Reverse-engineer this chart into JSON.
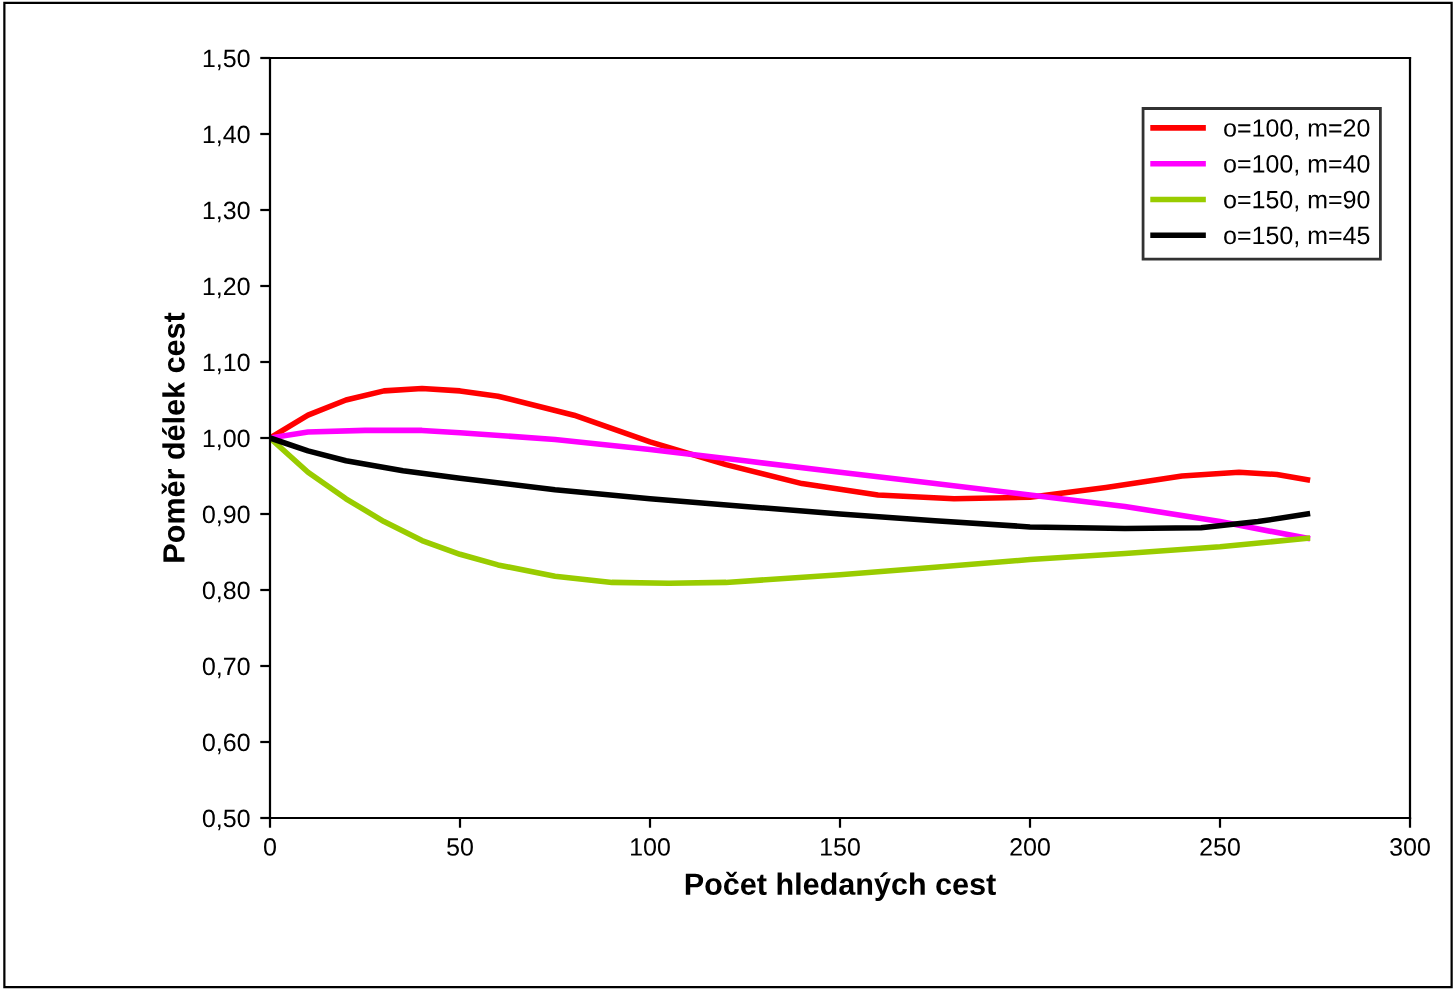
{
  "chart_data": {
    "type": "line",
    "xlabel": "Počet hledaných cest",
    "ylabel": "Poměr délek cest",
    "xlim": [
      0,
      300
    ],
    "xticks": [
      0,
      50,
      100,
      150,
      200,
      250,
      300
    ],
    "ylim": [
      0.5,
      1.5
    ],
    "yticks": [
      {
        "value": 0.5,
        "label": "0,50"
      },
      {
        "value": 0.6,
        "label": "0,60"
      },
      {
        "value": 0.7,
        "label": "0,70"
      },
      {
        "value": 0.8,
        "label": "0,80"
      },
      {
        "value": 0.9,
        "label": "0,90"
      },
      {
        "value": 1.0,
        "label": "1,00"
      },
      {
        "value": 1.1,
        "label": "1,10"
      },
      {
        "value": 1.2,
        "label": "1,20"
      },
      {
        "value": 1.3,
        "label": "1,30"
      },
      {
        "value": 1.4,
        "label": "1,40"
      },
      {
        "value": 1.5,
        "label": "1,50"
      }
    ],
    "grid": false,
    "legend": "top right",
    "marker": "none",
    "line_style": "solid",
    "series": [
      {
        "name": "o=100, m=20",
        "color": "#ff0000",
        "x": [
          0,
          10,
          20,
          30,
          40,
          50,
          60,
          80,
          100,
          120,
          140,
          160,
          180,
          200,
          220,
          240,
          255,
          265,
          273
        ],
        "values": [
          1.0,
          1.03,
          1.05,
          1.062,
          1.065,
          1.062,
          1.055,
          1.03,
          0.995,
          0.965,
          0.94,
          0.925,
          0.92,
          0.922,
          0.935,
          0.95,
          0.955,
          0.952,
          0.945
        ]
      },
      {
        "name": "o=100, m=40",
        "color": "#ff00ff",
        "x": [
          0,
          10,
          25,
          40,
          50,
          75,
          100,
          125,
          150,
          175,
          200,
          225,
          250,
          273
        ],
        "values": [
          1.0,
          1.008,
          1.01,
          1.01,
          1.007,
          0.998,
          0.985,
          0.97,
          0.955,
          0.94,
          0.925,
          0.91,
          0.89,
          0.868
        ]
      },
      {
        "name": "o=150, m=90",
        "color": "#99cc00",
        "x": [
          0,
          10,
          20,
          30,
          40,
          50,
          60,
          75,
          90,
          105,
          120,
          150,
          175,
          200,
          225,
          250,
          273
        ],
        "values": [
          1.0,
          0.955,
          0.92,
          0.89,
          0.865,
          0.847,
          0.833,
          0.818,
          0.81,
          0.809,
          0.81,
          0.82,
          0.83,
          0.84,
          0.848,
          0.857,
          0.868
        ]
      },
      {
        "name": "o=150, m=45",
        "color": "#000000",
        "x": [
          0,
          10,
          20,
          35,
          50,
          75,
          100,
          125,
          150,
          175,
          200,
          225,
          245,
          260,
          273
        ],
        "values": [
          1.0,
          0.983,
          0.97,
          0.957,
          0.947,
          0.932,
          0.92,
          0.91,
          0.9,
          0.891,
          0.883,
          0.881,
          0.882,
          0.89,
          0.9
        ]
      }
    ]
  }
}
